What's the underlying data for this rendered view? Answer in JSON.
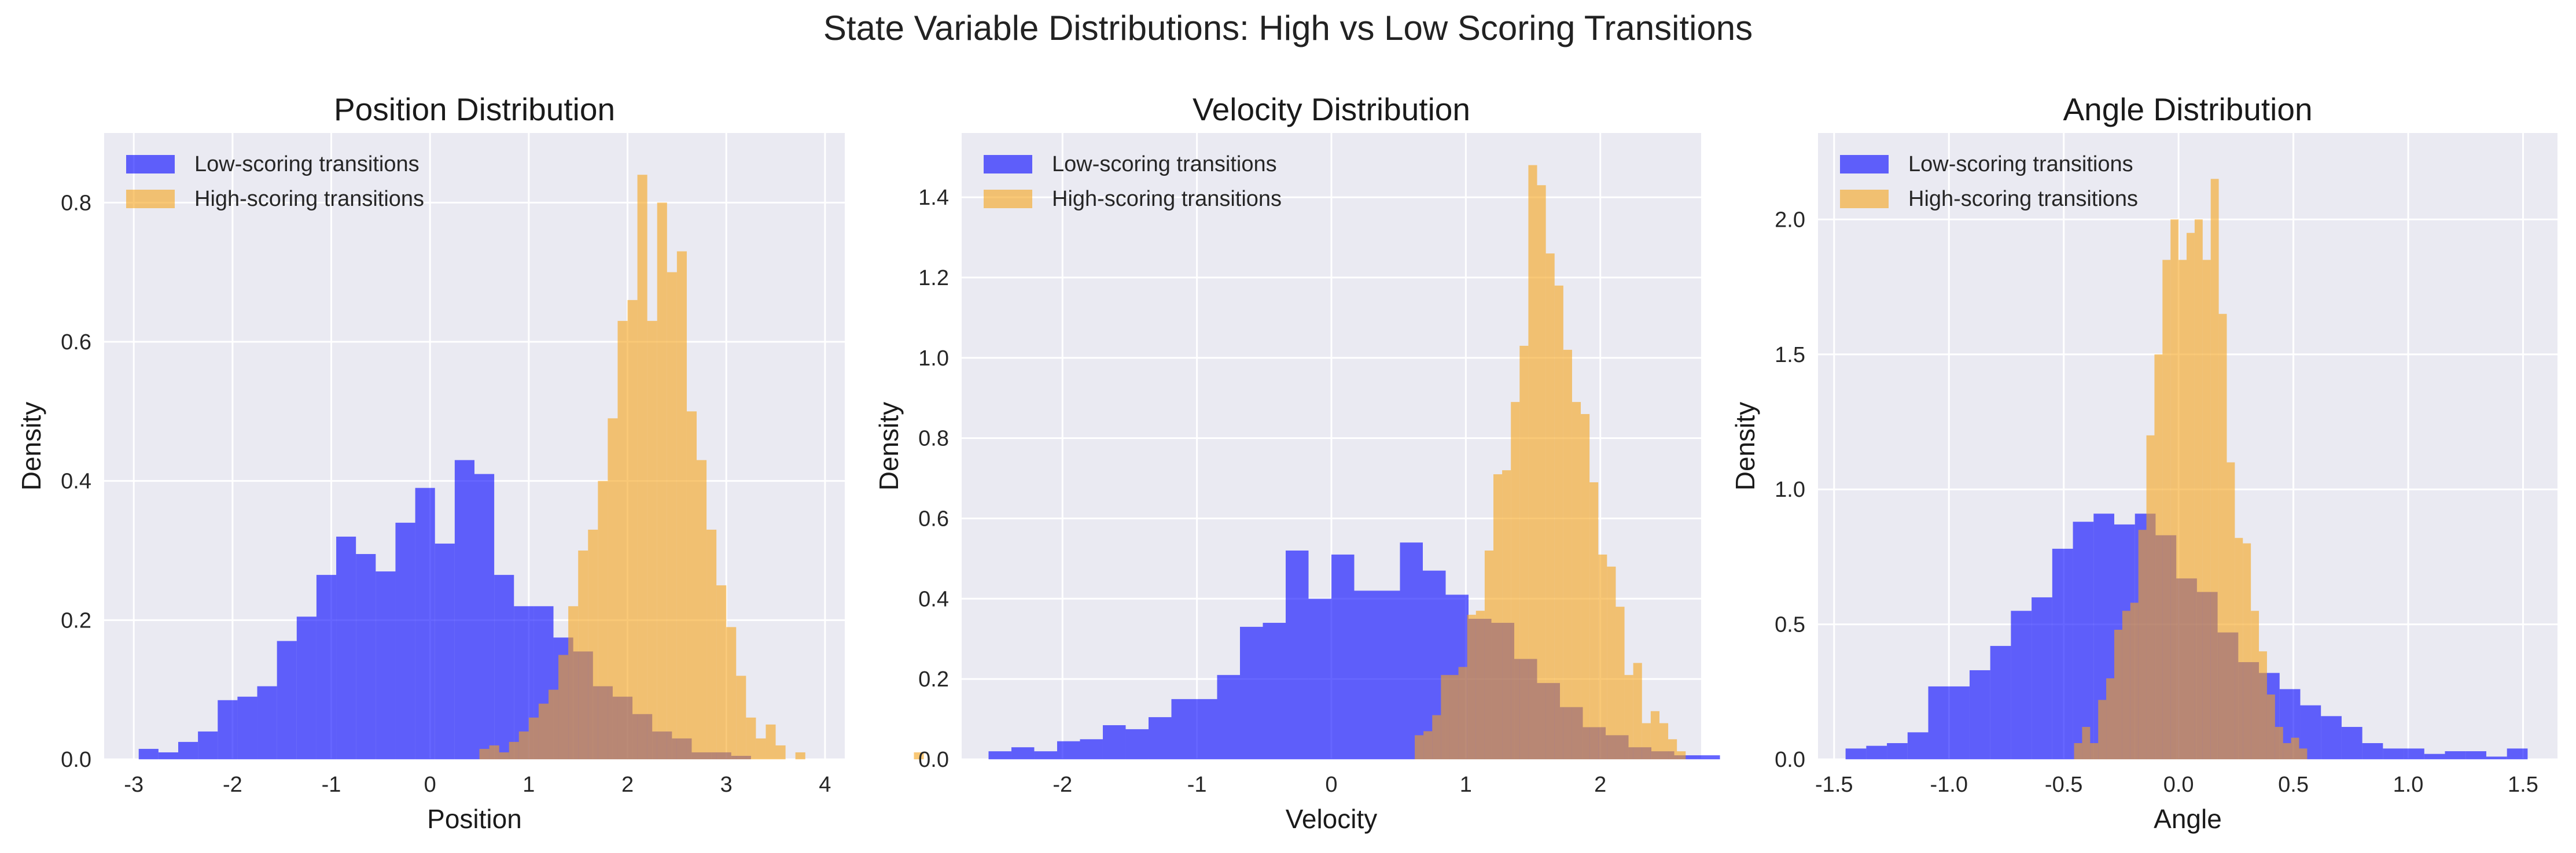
{
  "figure": {
    "title": "State Variable Distributions: High vs Low Scoring Transitions"
  },
  "colors": {
    "low": "#0000ff",
    "high": "#f5a31a",
    "background": "#eaeaf2",
    "grid": "#ffffff"
  },
  "chart_data": [
    {
      "type": "bar",
      "title": "Position Distribution",
      "xlabel": "Position",
      "ylabel": "Density",
      "xlim": [
        -3.3,
        4.2
      ],
      "ylim": [
        0,
        0.9
      ],
      "xticks": [
        -3,
        -2,
        -1,
        0,
        1,
        2,
        3,
        4
      ],
      "xtick_labels": [
        "-3",
        "-2",
        "-1",
        "0",
        "1",
        "2",
        "3",
        "4"
      ],
      "yticks": [
        0,
        0.2,
        0.4,
        0.6,
        0.8
      ],
      "ytick_labels": [
        "0.0",
        "0.2",
        "0.4",
        "0.6",
        "0.8"
      ],
      "legend_placement": "upper-left",
      "series": [
        {
          "name": "Low-scoring transitions",
          "color_key": "low",
          "bin_start": -2.95,
          "bin_width": 0.2,
          "values": [
            0.015,
            0.01,
            0.025,
            0.04,
            0.085,
            0.09,
            0.105,
            0.17,
            0.205,
            0.265,
            0.32,
            0.295,
            0.27,
            0.34,
            0.39,
            0.31,
            0.43,
            0.41,
            0.265,
            0.22,
            0.22,
            0.175,
            0.155,
            0.105,
            0.09,
            0.065,
            0.04,
            0.03,
            0.01,
            0.01,
            0.005
          ]
        },
        {
          "name": "High-scoring transitions",
          "color_key": "high",
          "bin_start": 0.4,
          "bin_width": 0.1,
          "values": [
            0.0,
            0.015,
            0.02,
            0.01,
            0.025,
            0.04,
            0.06,
            0.08,
            0.1,
            0.15,
            0.22,
            0.3,
            0.33,
            0.4,
            0.49,
            0.63,
            0.66,
            0.84,
            0.63,
            0.8,
            0.7,
            0.73,
            0.5,
            0.43,
            0.33,
            0.25,
            0.19,
            0.12,
            0.06,
            0.03,
            0.05,
            0.02,
            0.0,
            0.01,
            0.0,
            0.0,
            0.0,
            0.0,
            0.0,
            0.0,
            0.0,
            0.0,
            0.0,
            0.0,
            0.0,
            0.01
          ]
        }
      ]
    },
    {
      "type": "bar",
      "title": "Velocity Distribution",
      "xlabel": "Velocity",
      "ylabel": "Density",
      "xlim": [
        -2.75,
        2.75
      ],
      "ylim": [
        0,
        1.56
      ],
      "xticks": [
        -2,
        -1,
        0,
        1,
        2
      ],
      "xtick_labels": [
        "-2",
        "-1",
        "0",
        "1",
        "2"
      ],
      "yticks": [
        0,
        0.2,
        0.4,
        0.6,
        0.8,
        1.0,
        1.2,
        1.4
      ],
      "ytick_labels": [
        "0.0",
        "0.2",
        "0.4",
        "0.6",
        "0.8",
        "1.0",
        "1.2",
        "1.4"
      ],
      "legend_placement": "upper-left",
      "series": [
        {
          "name": "Low-scoring transitions",
          "color_key": "low",
          "bin_start": -2.55,
          "bin_width": 0.17,
          "values": [
            0.02,
            0.03,
            0.02,
            0.045,
            0.05,
            0.085,
            0.075,
            0.105,
            0.15,
            0.15,
            0.21,
            0.33,
            0.34,
            0.52,
            0.4,
            0.51,
            0.42,
            0.42,
            0.54,
            0.47,
            0.41,
            0.35,
            0.34,
            0.25,
            0.19,
            0.13,
            0.08,
            0.06,
            0.03,
            0.02,
            0.01,
            0.01
          ]
        },
        {
          "name": "High-scoring transitions",
          "color_key": "high",
          "bin_start": 0.62,
          "bin_width": 0.065,
          "values": [
            0.06,
            0.07,
            0.11,
            0.21,
            0.21,
            0.23,
            0.36,
            0.37,
            0.52,
            0.71,
            0.72,
            0.89,
            1.03,
            1.48,
            1.43,
            1.26,
            1.18,
            1.02,
            0.89,
            0.86,
            0.69,
            0.51,
            0.48,
            0.38,
            0.21,
            0.24,
            0.09,
            0.12,
            0.09,
            0.05,
            0.02
          ]
        }
      ]
    },
    {
      "type": "bar",
      "title": "Angle Distribution",
      "xlabel": "Angle",
      "ylabel": "Density",
      "xlim": [
        -1.57,
        1.65
      ],
      "ylim": [
        0,
        2.32
      ],
      "xticks": [
        -1.5,
        -1.0,
        -0.5,
        0,
        0.5,
        1.0,
        1.5
      ],
      "xtick_labels": [
        "-1.5",
        "-1.0",
        "-0.5",
        "0.0",
        "0.5",
        "1.0",
        "1.5"
      ],
      "yticks": [
        0,
        0.5,
        1.0,
        1.5,
        2.0
      ],
      "ytick_labels": [
        "0.0",
        "0.5",
        "1.0",
        "1.5",
        "2.0"
      ],
      "legend_placement": "upper-left",
      "series": [
        {
          "name": "Low-scoring transitions",
          "color_key": "low",
          "bin_start": -1.45,
          "bin_width": 0.09,
          "values": [
            0.04,
            0.05,
            0.06,
            0.1,
            0.27,
            0.27,
            0.33,
            0.42,
            0.55,
            0.6,
            0.78,
            0.88,
            0.91,
            0.87,
            0.91,
            0.83,
            0.67,
            0.62,
            0.47,
            0.36,
            0.32,
            0.26,
            0.2,
            0.16,
            0.12,
            0.06,
            0.04,
            0.04,
            0.02,
            0.03,
            0.03,
            0.01,
            0.04
          ]
        },
        {
          "name": "High-scoring transitions",
          "color_key": "high",
          "bin_start": -0.49,
          "bin_width": 0.035,
          "values": [
            0.0,
            0.06,
            0.12,
            0.06,
            0.22,
            0.3,
            0.48,
            0.55,
            0.58,
            0.85,
            1.2,
            1.5,
            1.85,
            2.0,
            1.85,
            1.95,
            2.0,
            1.85,
            2.15,
            1.65,
            1.1,
            0.82,
            0.8,
            0.55,
            0.4,
            0.24,
            0.12,
            0.06,
            0.08,
            0.04
          ]
        }
      ]
    }
  ]
}
